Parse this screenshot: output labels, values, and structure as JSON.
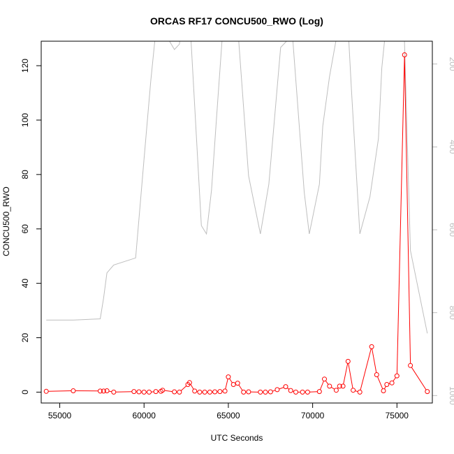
{
  "chart_data": {
    "type": "line",
    "title": "ORCAS RF17 CONCU500_RWO (Log)",
    "xlabel": "UTC Seconds",
    "ylabel": "CONCU500_RWO",
    "xlim": [
      53900,
      77100
    ],
    "ylim": [
      -4,
      129
    ],
    "y2lim": [
      1018,
      145
    ],
    "y2reverse": true,
    "xticks": [
      55000,
      60000,
      65000,
      70000,
      75000
    ],
    "yticks": [
      0,
      20,
      40,
      60,
      80,
      100,
      120
    ],
    "y2ticks": [
      200,
      400,
      600,
      800,
      1000
    ],
    "colors": {
      "primary": "#ff0000",
      "secondary": "#bebebe",
      "axis": "#000000"
    },
    "series": [
      {
        "axis": "left",
        "color": "#ff0000",
        "marker": "circle",
        "x": [
          54200,
          55800,
          57400,
          57600,
          57800,
          58200,
          59400,
          59700,
          60000,
          60300,
          60700,
          61000,
          61100,
          61800,
          62100,
          62600,
          62700,
          63000,
          63300,
          63600,
          63900,
          64200,
          64500,
          64800,
          65000,
          65300,
          65550,
          65900,
          66200,
          66900,
          67200,
          67500,
          67900,
          68400,
          68700,
          69000,
          69400,
          69700,
          70400,
          70700,
          71000,
          71400,
          71600,
          71800,
          72100,
          72400,
          72800,
          73500,
          73800,
          74200,
          74400,
          74700,
          75000,
          75450,
          75800,
          76800
        ],
        "y": [
          0.3,
          0.5,
          0.4,
          0.4,
          0.5,
          0.0,
          0.2,
          0.1,
          0.0,
          0.0,
          0.2,
          0.3,
          0.7,
          0.1,
          0.0,
          2.8,
          3.5,
          0.4,
          0.0,
          0.0,
          0.0,
          0.1,
          0.2,
          0.4,
          5.6,
          2.8,
          3.3,
          0.0,
          0.1,
          0.0,
          0.0,
          0.1,
          0.9,
          2.0,
          0.6,
          0.0,
          0.0,
          0.0,
          0.2,
          4.8,
          2.2,
          0.7,
          2.2,
          2.2,
          11.3,
          0.7,
          0.0,
          16.7,
          6.4,
          0.5,
          2.8,
          3.4,
          6.0,
          124.0,
          9.8,
          0.2
        ]
      },
      {
        "axis": "right",
        "color": "#bebebe",
        "x": [
          54200,
          55800,
          57400,
          57600,
          57800,
          58200,
          59500,
          60000,
          60400,
          60700,
          61000,
          61800,
          62100,
          62300,
          62700,
          63400,
          63700,
          64000,
          64300,
          64700,
          65000,
          65300,
          65500,
          66200,
          66900,
          67400,
          67700,
          68100,
          68800,
          69500,
          69800,
          70400,
          70600,
          71000,
          71400,
          71800,
          72100,
          72300,
          72800,
          73400,
          73900,
          74100,
          74500,
          75100,
          75400,
          75800,
          76800
        ],
        "y": [
          818,
          818,
          815,
          765,
          704,
          685,
          668,
          430,
          240,
          120,
          110,
          165,
          152,
          80,
          80,
          590,
          610,
          505,
          330,
          100,
          40,
          40,
          80,
          470,
          610,
          490,
          350,
          160,
          130,
          510,
          610,
          490,
          350,
          230,
          140,
          100,
          110,
          260,
          610,
          520,
          380,
          210,
          50,
          60,
          80,
          650,
          850
        ]
      }
    ]
  }
}
